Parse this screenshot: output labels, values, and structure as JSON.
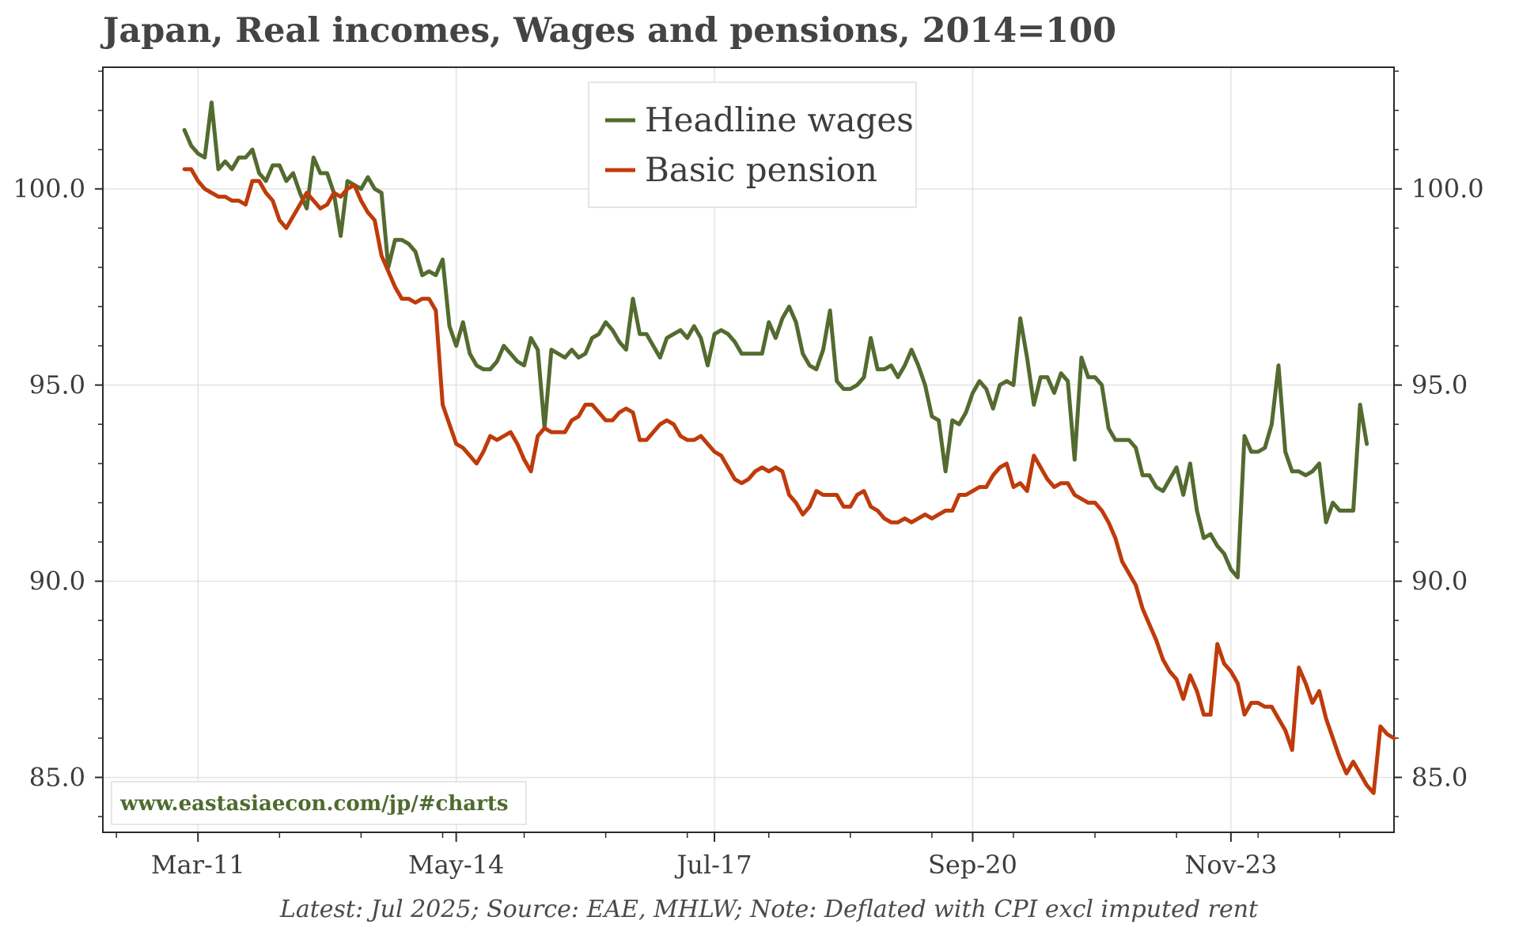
{
  "chart_data": {
    "type": "line",
    "title": "Japan, Real incomes, Wages and pensions, 2014=100",
    "footnote": "Latest: Jul 2025; Source: EAE, MHLW; Note: Deflated with CPI excl imputed rent",
    "watermark": "www.eastasiaecon.com/jp/#charts",
    "xlabel": "",
    "ylabel": "",
    "x_ticks": [
      "Mar-11",
      "May-14",
      "Jul-17",
      "Sep-20",
      "Nov-23"
    ],
    "y_ticks": [
      "85.0",
      "90.0",
      "95.0",
      "100.0"
    ],
    "ylim": [
      83.6,
      103.1
    ],
    "x_range": [
      "Jan-10",
      "Nov-25"
    ],
    "legend_position": "top-center",
    "grid": true,
    "series": [
      {
        "name": "Headline wages",
        "color": "#536b2f",
        "start": "Jan-11",
        "values": [
          101.5,
          101.1,
          100.9,
          100.8,
          102.2,
          100.5,
          100.7,
          100.5,
          100.8,
          100.8,
          101.0,
          100.4,
          100.2,
          100.6,
          100.6,
          100.2,
          100.4,
          99.9,
          99.5,
          100.8,
          100.4,
          100.4,
          99.9,
          98.8,
          100.2,
          100.1,
          100.0,
          100.3,
          100.0,
          99.9,
          98.0,
          98.7,
          98.7,
          98.6,
          98.4,
          97.8,
          97.9,
          97.8,
          98.2,
          96.5,
          96.0,
          96.6,
          95.8,
          95.5,
          95.4,
          95.4,
          95.6,
          96.0,
          95.8,
          95.6,
          95.5,
          96.2,
          95.9,
          93.9,
          95.9,
          95.8,
          95.7,
          95.9,
          95.7,
          95.8,
          96.2,
          96.3,
          96.6,
          96.4,
          96.1,
          95.9,
          97.2,
          96.3,
          96.3,
          96.0,
          95.7,
          96.2,
          96.3,
          96.4,
          96.2,
          96.5,
          96.2,
          95.5,
          96.3,
          96.4,
          96.3,
          96.1,
          95.8,
          95.8,
          95.8,
          95.8,
          96.6,
          96.2,
          96.7,
          97.0,
          96.6,
          95.8,
          95.5,
          95.4,
          95.9,
          96.9,
          95.1,
          94.9,
          94.9,
          95.0,
          95.2,
          96.2,
          95.4,
          95.4,
          95.5,
          95.2,
          95.5,
          95.9,
          95.5,
          95.0,
          94.2,
          94.1,
          92.8,
          94.1,
          94.0,
          94.3,
          94.8,
          95.1,
          94.9,
          94.4,
          95.0,
          95.1,
          95.0,
          96.7,
          95.7,
          94.5,
          95.2,
          95.2,
          94.8,
          95.3,
          95.1,
          93.1,
          95.7,
          95.2,
          95.2,
          95.0,
          93.9,
          93.6,
          93.6,
          93.6,
          93.4,
          92.7,
          92.7,
          92.4,
          92.3,
          92.6,
          92.9,
          92.2,
          93.0,
          91.8,
          91.1,
          91.2,
          90.9,
          90.7,
          90.3,
          90.1,
          93.7,
          93.3,
          93.3,
          93.4,
          94.0,
          95.5,
          93.3,
          92.8,
          92.8,
          92.7,
          92.8,
          93.0,
          91.5,
          92.0,
          91.8,
          91.8,
          91.8,
          94.5,
          93.5
        ]
      },
      {
        "name": "Basic pension",
        "color": "#bf3b0b",
        "start": "Jan-11",
        "values": [
          100.5,
          100.5,
          100.2,
          100.0,
          99.9,
          99.8,
          99.8,
          99.7,
          99.7,
          99.6,
          100.2,
          100.2,
          99.9,
          99.7,
          99.2,
          99.0,
          99.3,
          99.6,
          99.9,
          99.7,
          99.5,
          99.6,
          99.9,
          99.8,
          100.0,
          100.1,
          99.7,
          99.4,
          99.2,
          98.3,
          97.9,
          97.5,
          97.2,
          97.2,
          97.1,
          97.2,
          97.2,
          96.9,
          94.5,
          94.0,
          93.5,
          93.4,
          93.2,
          93.0,
          93.3,
          93.7,
          93.6,
          93.7,
          93.8,
          93.5,
          93.1,
          92.8,
          93.7,
          93.9,
          93.8,
          93.8,
          93.8,
          94.1,
          94.2,
          94.5,
          94.5,
          94.3,
          94.1,
          94.1,
          94.3,
          94.4,
          94.3,
          93.6,
          93.6,
          93.8,
          94.0,
          94.1,
          94.0,
          93.7,
          93.6,
          93.6,
          93.7,
          93.5,
          93.3,
          93.2,
          92.9,
          92.6,
          92.5,
          92.6,
          92.8,
          92.9,
          92.8,
          92.9,
          92.8,
          92.2,
          92.0,
          91.7,
          91.9,
          92.3,
          92.2,
          92.2,
          92.2,
          91.9,
          91.9,
          92.2,
          92.3,
          91.9,
          91.8,
          91.6,
          91.5,
          91.5,
          91.6,
          91.5,
          91.6,
          91.7,
          91.6,
          91.7,
          91.8,
          91.8,
          92.2,
          92.2,
          92.3,
          92.4,
          92.4,
          92.7,
          92.9,
          93.0,
          92.4,
          92.5,
          92.3,
          93.2,
          92.9,
          92.6,
          92.4,
          92.5,
          92.5,
          92.2,
          92.1,
          92.0,
          92.0,
          91.8,
          91.5,
          91.1,
          90.5,
          90.2,
          89.9,
          89.3,
          88.9,
          88.5,
          88.0,
          87.7,
          87.5,
          87.0,
          87.6,
          87.2,
          86.6,
          86.6,
          88.4,
          87.9,
          87.7,
          87.4,
          86.6,
          86.9,
          86.9,
          86.8,
          86.8,
          86.5,
          86.2,
          85.7,
          87.8,
          87.4,
          86.9,
          87.2,
          86.5,
          86.0,
          85.5,
          85.1,
          85.4,
          85.1,
          84.8,
          84.6,
          86.3,
          86.1,
          86.0
        ]
      }
    ]
  }
}
